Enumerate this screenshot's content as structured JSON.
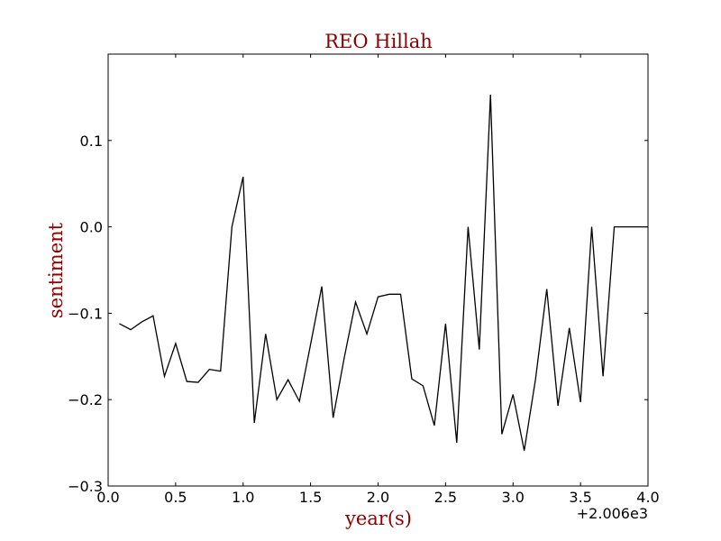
{
  "chart_data": {
    "type": "line",
    "title": "REO Hillah",
    "xlabel": "year(s)",
    "ylabel": "sentiment",
    "x_offset_label": "+2.006e3",
    "xlim": [
      0.0,
      4.0
    ],
    "ylim": [
      -0.3,
      0.2
    ],
    "grid": false,
    "x_ticks": [
      0.0,
      0.5,
      1.0,
      1.5,
      2.0,
      2.5,
      3.0,
      3.5,
      4.0
    ],
    "x_tick_labels": [
      "0.0",
      "0.5",
      "1.0",
      "1.5",
      "2.0",
      "2.5",
      "3.0",
      "3.5",
      "4.0"
    ],
    "y_ticks": [
      -0.3,
      -0.2,
      -0.1,
      0.0,
      0.1
    ],
    "y_tick_labels": [
      "−0.3",
      "−0.2",
      "−0.1",
      "0.0",
      "0.1"
    ],
    "series": [
      {
        "color": "#000000",
        "x": [
          0.083,
          0.167,
          0.25,
          0.333,
          0.417,
          0.5,
          0.583,
          0.667,
          0.75,
          0.833,
          0.917,
          1.0,
          1.083,
          1.167,
          1.25,
          1.333,
          1.417,
          1.5,
          1.583,
          1.667,
          1.75,
          1.833,
          1.917,
          2.0,
          2.083,
          2.167,
          2.25,
          2.333,
          2.417,
          2.5,
          2.583,
          2.667,
          2.75,
          2.833,
          2.917,
          3.0,
          3.083,
          3.167,
          3.25,
          3.333,
          3.417,
          3.5,
          3.583,
          3.667,
          3.75,
          3.833,
          3.917,
          4.0
        ],
        "y": [
          -0.112,
          -0.119,
          -0.11,
          -0.103,
          -0.173,
          -0.135,
          -0.179,
          -0.18,
          -0.165,
          -0.167,
          0.0,
          0.058,
          -0.227,
          -0.124,
          -0.2,
          -0.177,
          -0.202,
          -0.136,
          -0.069,
          -0.221,
          -0.151,
          -0.087,
          -0.124,
          -0.081,
          -0.078,
          -0.078,
          -0.176,
          -0.184,
          -0.23,
          -0.112,
          -0.25,
          0.0,
          -0.142,
          0.153,
          -0.24,
          -0.194,
          -0.259,
          -0.176,
          -0.072,
          -0.207,
          -0.117,
          -0.203,
          0.0,
          -0.173,
          0.0,
          0.0,
          0.0,
          0.0
        ]
      }
    ]
  }
}
